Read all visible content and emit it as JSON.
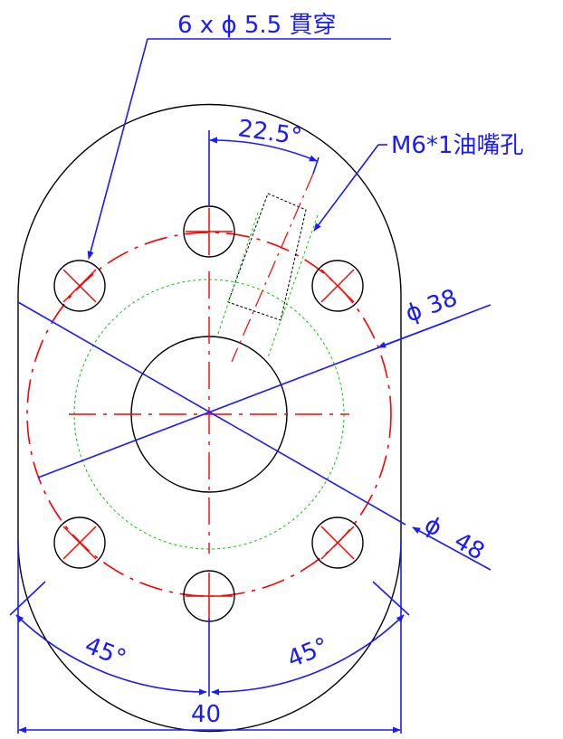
{
  "labels": {
    "holes": "6 x ϕ  5.5 貫穿",
    "angle_top": "22.5°",
    "oil_hole": "M6*1油嘴孔",
    "dia_38": "ϕ  38",
    "dia_48_symbol": "ϕ",
    "dia_48_value": "48",
    "angle_left": "45°",
    "angle_right": "45°",
    "width": "40"
  },
  "colors": {
    "outline": "#000000",
    "center_lines": "#ff0000",
    "dimensions": "#1a1aff",
    "hidden_lines": "#00cc00"
  }
}
